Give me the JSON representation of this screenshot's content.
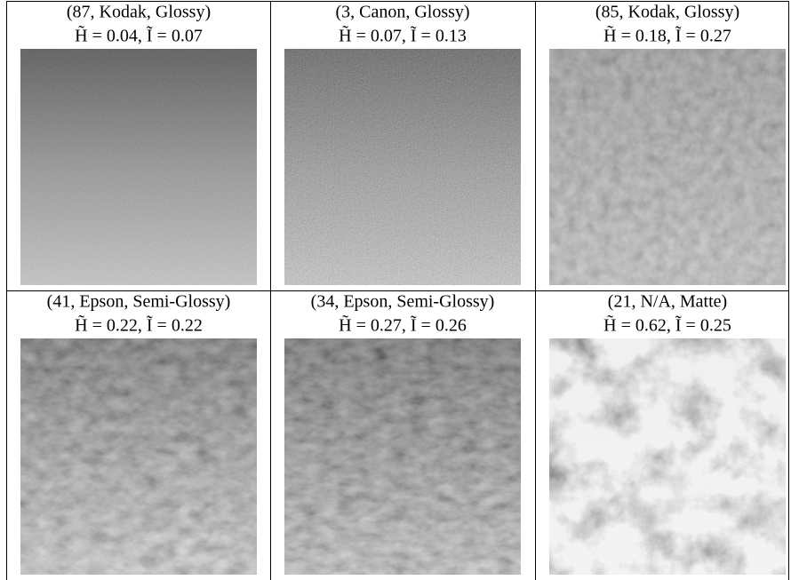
{
  "cells": [
    {
      "label": "(87, Kodak, Glossy)",
      "formula": "H̃ = 0.04, Ĩ = 0.07"
    },
    {
      "label": "(3, Canon, Glossy)",
      "formula": "H̃ = 0.07, Ĩ = 0.13"
    },
    {
      "label": "(85, Kodak, Glossy)",
      "formula": "H̃ = 0.18, Ĩ = 0.27"
    },
    {
      "label": "(41, Epson, Semi-Glossy)",
      "formula": "H̃ = 0.22, Ĩ = 0.22"
    },
    {
      "label": "(34, Epson, Semi-Glossy)",
      "formula": "H̃ = 0.27, Ĩ = 0.26"
    },
    {
      "label": "(21, N/A, Matte)",
      "formula": "H̃ = 0.62, Ĩ = 0.25"
    }
  ]
}
